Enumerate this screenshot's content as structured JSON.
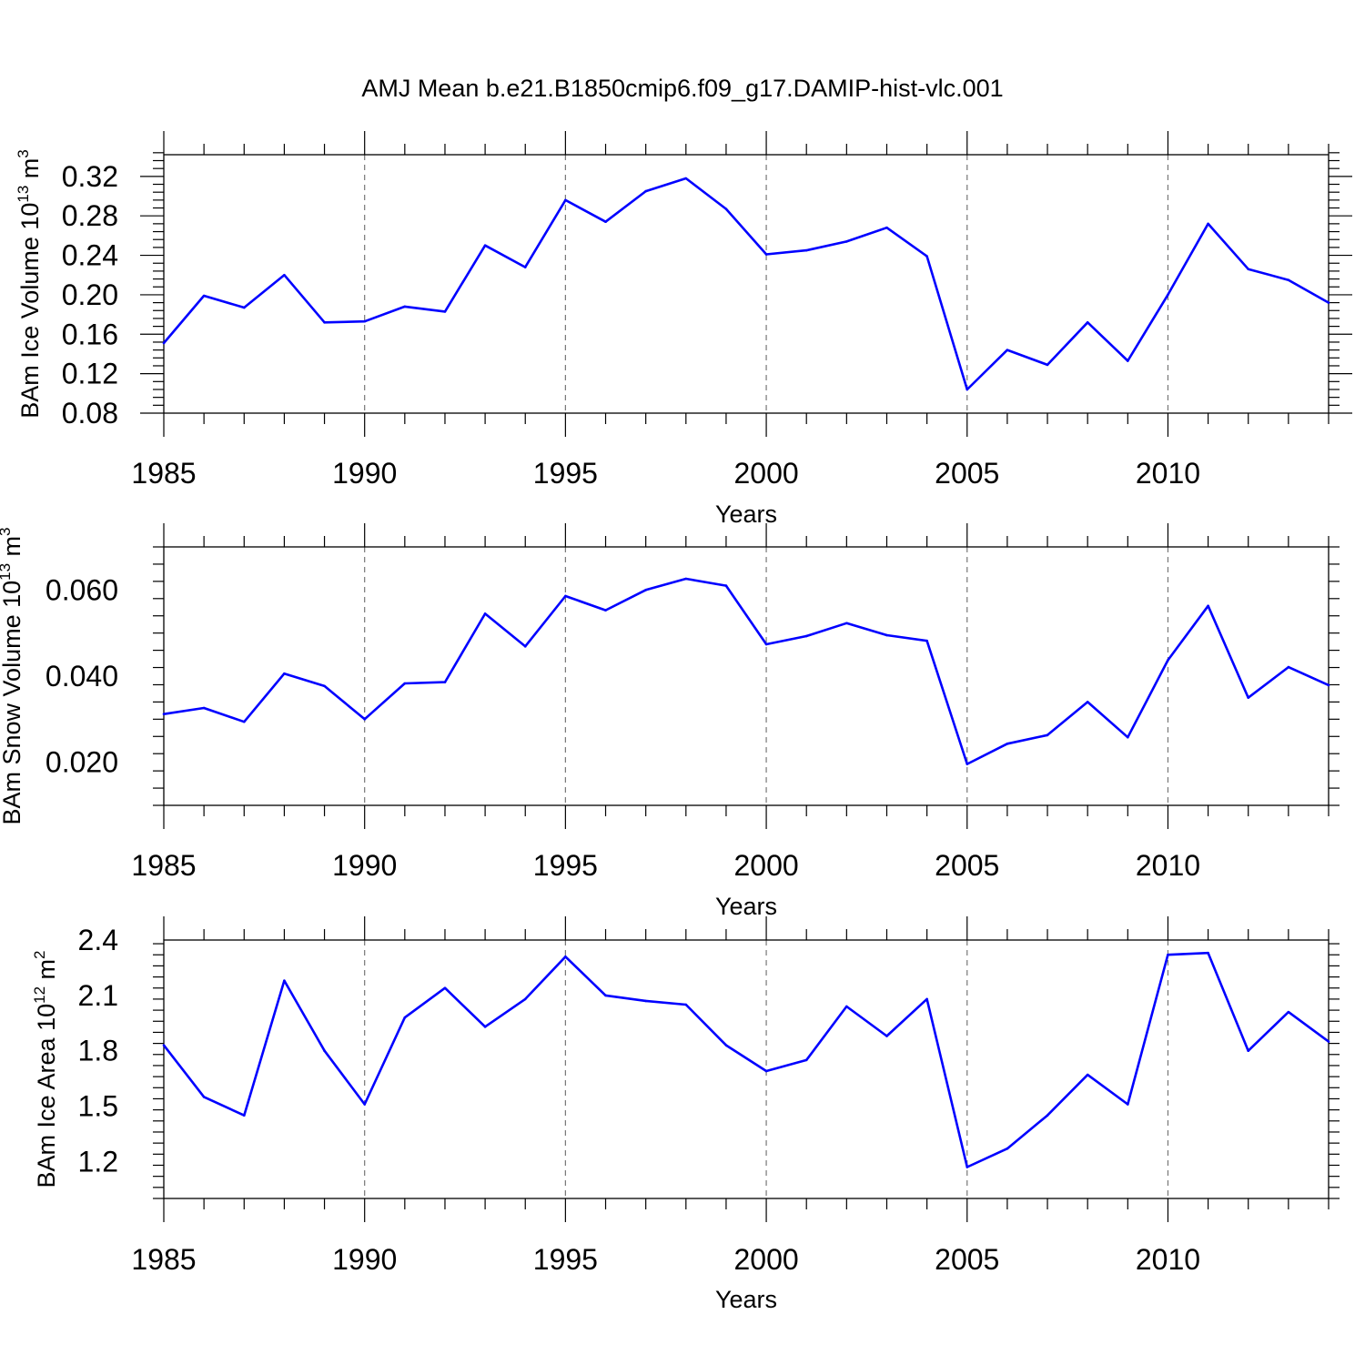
{
  "title": "AMJ Mean b.e21.B1850cmip6.f09_g17.DAMIP-hist-vlc.001",
  "colors": {
    "series": "#0000ff",
    "axis": "#000000",
    "grid": "#777777"
  },
  "chart_data": [
    {
      "type": "line",
      "ylabel": "BAm Ice Volume 10",
      "ylabel_exp": "13",
      "ylabel_unit": " m",
      "ylabel_unit_exp": "3",
      "xlabel": "Years",
      "xlim": [
        1985,
        2014
      ],
      "ylim": [
        0.08,
        0.342
      ],
      "yticks": [
        0.08,
        0.12,
        0.16,
        0.2,
        0.24,
        0.28,
        0.32
      ],
      "ytick_labels": [
        "0.08",
        "0.12",
        "0.16",
        "0.20",
        "0.24",
        "0.28",
        "0.32"
      ],
      "xticks": [
        1985,
        1990,
        1995,
        2000,
        2005,
        2010
      ],
      "xtick_labels": [
        "1985",
        "1990",
        "1995",
        "2000",
        "2005",
        "2010"
      ],
      "x": [
        1985,
        1986,
        1987,
        1988,
        1989,
        1990,
        1991,
        1992,
        1993,
        1994,
        1995,
        1996,
        1997,
        1998,
        1999,
        2000,
        2001,
        2002,
        2003,
        2004,
        2005,
        2006,
        2007,
        2008,
        2009,
        2010,
        2011,
        2012,
        2013,
        2014
      ],
      "values": [
        0.151,
        0.199,
        0.187,
        0.22,
        0.172,
        0.173,
        0.188,
        0.183,
        0.25,
        0.228,
        0.296,
        0.274,
        0.305,
        0.318,
        0.287,
        0.241,
        0.245,
        0.254,
        0.268,
        0.239,
        0.104,
        0.144,
        0.129,
        0.172,
        0.133,
        0.2,
        0.272,
        0.226,
        0.215,
        0.192
      ]
    },
    {
      "type": "line",
      "ylabel": "BAm Snow Volume 10",
      "ylabel_exp": "13",
      "ylabel_unit": " m",
      "ylabel_unit_exp": "3",
      "xlabel": "Years",
      "xlim": [
        1985,
        2014
      ],
      "ylim": [
        0.01,
        0.07
      ],
      "yticks": [
        0.02,
        0.04,
        0.06
      ],
      "ytick_labels": [
        "0.020",
        "0.040",
        "0.060"
      ],
      "xticks": [
        1985,
        1990,
        1995,
        2000,
        2005,
        2010
      ],
      "xtick_labels": [
        "1985",
        "1990",
        "1995",
        "2000",
        "2005",
        "2010"
      ],
      "x": [
        1985,
        1986,
        1987,
        1988,
        1989,
        1990,
        1991,
        1992,
        1993,
        1994,
        1995,
        1996,
        1997,
        1998,
        1999,
        2000,
        2001,
        2002,
        2003,
        2004,
        2005,
        2006,
        2007,
        2008,
        2009,
        2010,
        2011,
        2012,
        2013,
        2014
      ],
      "values": [
        0.0312,
        0.0326,
        0.0294,
        0.0406,
        0.0377,
        0.03,
        0.0383,
        0.0386,
        0.0545,
        0.0469,
        0.0586,
        0.0553,
        0.06,
        0.0626,
        0.061,
        0.0474,
        0.0493,
        0.0523,
        0.0495,
        0.0482,
        0.0196,
        0.0243,
        0.0263,
        0.034,
        0.0258,
        0.0437,
        0.0563,
        0.035,
        0.0421,
        0.0379
      ]
    },
    {
      "type": "line",
      "ylabel": "BAm Ice Area 10",
      "ylabel_exp": "12",
      "ylabel_unit": " m",
      "ylabel_unit_exp": "2",
      "xlabel": "Years",
      "xlim": [
        1985,
        2014
      ],
      "ylim": [
        1.0,
        2.4
      ],
      "yticks": [
        1.2,
        1.5,
        1.8,
        2.1,
        2.4
      ],
      "ytick_labels": [
        "1.2",
        "1.5",
        "1.8",
        "2.1",
        "2.4"
      ],
      "xticks": [
        1985,
        1990,
        1995,
        2000,
        2005,
        2010
      ],
      "xtick_labels": [
        "1985",
        "1990",
        "1995",
        "2000",
        "2005",
        "2010"
      ],
      "x": [
        1985,
        1986,
        1987,
        1988,
        1989,
        1990,
        1991,
        1992,
        1993,
        1994,
        1995,
        1996,
        1997,
        1998,
        1999,
        2000,
        2001,
        2002,
        2003,
        2004,
        2005,
        2006,
        2007,
        2008,
        2009,
        2010,
        2011,
        2012,
        2013,
        2014
      ],
      "values": [
        1.83,
        1.55,
        1.45,
        2.18,
        1.8,
        1.51,
        1.98,
        2.14,
        1.93,
        2.08,
        2.31,
        2.1,
        2.07,
        2.05,
        1.83,
        1.69,
        1.75,
        2.04,
        1.88,
        2.08,
        1.17,
        1.27,
        1.45,
        1.67,
        1.51,
        2.32,
        2.33,
        1.8,
        2.01,
        1.85
      ]
    }
  ]
}
